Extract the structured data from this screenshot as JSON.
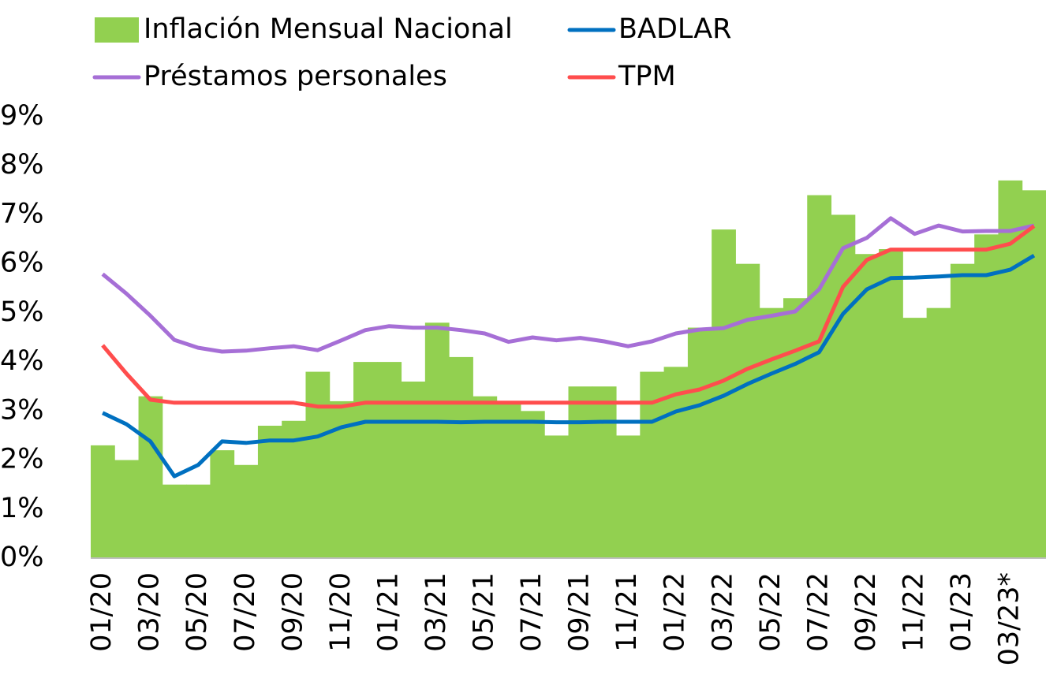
{
  "chart_data": {
    "type": "bar",
    "categories": [
      "01/20",
      null,
      "03/20",
      null,
      "05/20",
      null,
      "07/20",
      null,
      "09/20",
      null,
      "11/20",
      null,
      "01/21",
      null,
      "03/21",
      null,
      "05/21",
      null,
      "07/21",
      null,
      "09/21",
      null,
      "11/21",
      null,
      "01/22",
      null,
      "03/22",
      null,
      "05/22",
      null,
      "07/22",
      null,
      "09/22",
      null,
      "11/22",
      null,
      "01/23",
      null,
      "03/23*",
      null
    ],
    "series": [
      {
        "name": "Inflación Mensual Nacional",
        "type": "bar",
        "color": "#92d050",
        "values": [
          2.3,
          2.0,
          3.3,
          1.5,
          1.5,
          2.2,
          1.9,
          2.7,
          2.8,
          3.8,
          3.2,
          4.0,
          4.0,
          3.6,
          4.8,
          4.1,
          3.3,
          3.2,
          3.0,
          2.5,
          3.5,
          3.5,
          2.5,
          3.8,
          3.9,
          4.7,
          6.7,
          6.0,
          5.1,
          5.3,
          7.4,
          7.0,
          6.2,
          6.3,
          4.9,
          5.1,
          6.0,
          6.6,
          7.7,
          7.5
        ]
      },
      {
        "name": "BADLAR",
        "type": "line",
        "color": "#0070c0",
        "values": [
          2.96,
          2.73,
          2.38,
          1.67,
          1.9,
          2.38,
          2.35,
          2.4,
          2.4,
          2.48,
          2.67,
          2.78,
          2.78,
          2.78,
          2.78,
          2.77,
          2.78,
          2.78,
          2.78,
          2.77,
          2.77,
          2.78,
          2.78,
          2.78,
          2.99,
          3.12,
          3.31,
          3.55,
          3.76,
          3.96,
          4.2,
          4.98,
          5.48,
          5.71,
          5.72,
          5.74,
          5.77,
          5.77,
          5.88,
          6.17
        ]
      },
      {
        "name": "Préstamos personales",
        "type": "line",
        "color": "#a66fd6",
        "values": [
          5.79,
          5.39,
          4.94,
          4.45,
          4.29,
          4.21,
          4.23,
          4.28,
          4.32,
          4.24,
          4.44,
          4.65,
          4.73,
          4.7,
          4.7,
          4.65,
          4.58,
          4.41,
          4.5,
          4.44,
          4.49,
          4.42,
          4.32,
          4.42,
          4.58,
          4.66,
          4.69,
          4.86,
          4.94,
          5.03,
          5.48,
          6.32,
          6.53,
          6.93,
          6.61,
          6.78,
          6.66,
          6.67,
          6.67,
          6.78
        ]
      },
      {
        "name": "TPM",
        "type": "line",
        "color": "#ff4d4d",
        "values": [
          4.34,
          3.76,
          3.23,
          3.17,
          3.17,
          3.17,
          3.17,
          3.17,
          3.17,
          3.09,
          3.09,
          3.17,
          3.17,
          3.17,
          3.17,
          3.17,
          3.17,
          3.17,
          3.17,
          3.17,
          3.17,
          3.17,
          3.17,
          3.17,
          3.34,
          3.44,
          3.62,
          3.86,
          4.05,
          4.23,
          4.42,
          5.53,
          6.08,
          6.29,
          6.29,
          6.29,
          6.29,
          6.29,
          6.41,
          6.77
        ]
      }
    ],
    "ylim": [
      0,
      9
    ],
    "yticks": [
      {
        "value": 0,
        "label": "0%"
      },
      {
        "value": 1,
        "label": "1%"
      },
      {
        "value": 2,
        "label": "2%"
      },
      {
        "value": 3,
        "label": "3%"
      },
      {
        "value": 4,
        "label": "4%"
      },
      {
        "value": 5,
        "label": "5%"
      },
      {
        "value": 6,
        "label": "6%"
      },
      {
        "value": 7,
        "label": "7%"
      },
      {
        "value": 8,
        "label": "8%"
      },
      {
        "value": 9,
        "label": "9%"
      }
    ],
    "grid": false,
    "legend": "top"
  }
}
